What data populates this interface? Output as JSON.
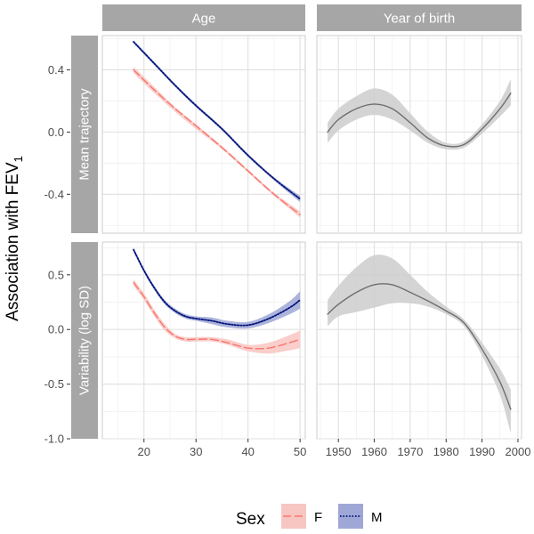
{
  "chart_data": {
    "type": "line",
    "ylabel_main": "Association with FEV",
    "ylabel_sub": "1",
    "col_labels": [
      "Age",
      "Year of birth"
    ],
    "row_labels": [
      "Mean trajectory",
      "Variability (log SD)"
    ],
    "axes": {
      "age_x": {
        "range": [
          12,
          51
        ],
        "ticks": [
          20,
          30,
          40,
          50
        ],
        "labels": [
          "20",
          "30",
          "40",
          "50"
        ]
      },
      "year_x": {
        "range": [
          1944,
          2001
        ],
        "ticks": [
          1950,
          1960,
          1970,
          1980,
          1990,
          2000
        ],
        "labels": [
          "1950",
          "1960",
          "1970",
          "1980",
          "1990",
          "2000"
        ]
      },
      "mean_y": {
        "range": [
          -0.65,
          0.62
        ],
        "ticks": [
          0.4,
          0.0,
          -0.4
        ],
        "labels": [
          "0.4",
          "0.0",
          "-0.4"
        ]
      },
      "var_y": {
        "range": [
          -1.0,
          0.8
        ],
        "ticks": [
          0.5,
          0.0,
          -0.5,
          -1.0
        ],
        "labels": [
          "0.5",
          "0.0",
          "-0.5",
          "-1.0"
        ]
      }
    },
    "legend": {
      "title": "Sex",
      "placement": "bottom",
      "entries": [
        {
          "key": "F",
          "label": "F",
          "color": "#f8766d",
          "fill": "#f8c6c2",
          "dash": "dashed"
        },
        {
          "key": "M",
          "label": "M",
          "color": "#00137a",
          "fill": "#9fa7d6",
          "dash": "dotted"
        }
      ]
    },
    "panels": [
      {
        "id": "age-mean",
        "x_axis": "age_x",
        "y_axis": "mean_y",
        "series": [
          {
            "name": "F",
            "x": [
              18,
              22,
              26,
              30,
              35,
              40,
              45,
              50
            ],
            "y": [
              0.4,
              0.27,
              0.15,
              0.04,
              -0.1,
              -0.25,
              -0.4,
              -0.53
            ],
            "lo": [
              0.38,
              0.25,
              0.13,
              0.02,
              -0.11,
              -0.26,
              -0.41,
              -0.55
            ],
            "hi": [
              0.42,
              0.29,
              0.16,
              0.05,
              -0.09,
              -0.24,
              -0.39,
              -0.51
            ]
          },
          {
            "name": "M",
            "x": [
              18,
              22,
              26,
              30,
              35,
              40,
              45,
              50
            ],
            "y": [
              0.58,
              0.44,
              0.3,
              0.17,
              0.02,
              -0.15,
              -0.3,
              -0.43
            ],
            "lo": [
              0.57,
              0.43,
              0.29,
              0.16,
              0.01,
              -0.16,
              -0.31,
              -0.45
            ],
            "hi": [
              0.59,
              0.45,
              0.31,
              0.18,
              0.03,
              -0.14,
              -0.29,
              -0.41
            ]
          }
        ]
      },
      {
        "id": "year-mean",
        "x_axis": "year_x",
        "y_axis": "mean_y",
        "series": [
          {
            "name": "",
            "x": [
              1947,
              1950,
              1955,
              1960,
              1965,
              1970,
              1975,
              1980,
              1985,
              1990,
              1995,
              1998
            ],
            "y": [
              0.0,
              0.08,
              0.15,
              0.18,
              0.15,
              0.06,
              -0.04,
              -0.09,
              -0.08,
              0.02,
              0.15,
              0.25
            ],
            "lo": [
              -0.07,
              0.01,
              0.08,
              0.11,
              0.08,
              0.01,
              -0.07,
              -0.11,
              -0.1,
              -0.01,
              0.1,
              0.17
            ],
            "hi": [
              0.06,
              0.15,
              0.23,
              0.28,
              0.24,
              0.12,
              0.0,
              -0.07,
              -0.06,
              0.05,
              0.2,
              0.34
            ]
          }
        ]
      },
      {
        "id": "age-var",
        "x_axis": "age_x",
        "y_axis": "var_y",
        "series": [
          {
            "name": "F",
            "x": [
              18,
              20,
              22,
              24,
              26,
              28,
              30,
              33,
              36,
              40,
              44,
              48,
              50
            ],
            "y": [
              0.43,
              0.3,
              0.15,
              0.02,
              -0.06,
              -0.09,
              -0.09,
              -0.09,
              -0.12,
              -0.17,
              -0.17,
              -0.12,
              -0.09
            ],
            "lo": [
              0.4,
              0.27,
              0.12,
              -0.01,
              -0.08,
              -0.11,
              -0.11,
              -0.11,
              -0.14,
              -0.2,
              -0.22,
              -0.19,
              -0.17
            ],
            "hi": [
              0.46,
              0.33,
              0.18,
              0.05,
              -0.04,
              -0.07,
              -0.07,
              -0.07,
              -0.09,
              -0.14,
              -0.12,
              -0.05,
              -0.01
            ]
          },
          {
            "name": "M",
            "x": [
              18,
              20,
              22,
              24,
              26,
              28,
              30,
              33,
              36,
              40,
              44,
              48,
              50
            ],
            "y": [
              0.73,
              0.54,
              0.38,
              0.25,
              0.17,
              0.12,
              0.1,
              0.08,
              0.05,
              0.04,
              0.1,
              0.2,
              0.27
            ],
            "lo": [
              0.71,
              0.52,
              0.36,
              0.23,
              0.15,
              0.1,
              0.08,
              0.05,
              0.02,
              0.01,
              0.06,
              0.14,
              0.19
            ],
            "hi": [
              0.75,
              0.56,
              0.4,
              0.27,
              0.19,
              0.14,
              0.12,
              0.11,
              0.08,
              0.07,
              0.14,
              0.26,
              0.35
            ]
          }
        ]
      },
      {
        "id": "year-var",
        "x_axis": "year_x",
        "y_axis": "var_y",
        "series": [
          {
            "name": "",
            "x": [
              1947,
              1950,
              1955,
              1960,
              1965,
              1970,
              1975,
              1980,
              1985,
              1990,
              1995,
              1998
            ],
            "y": [
              0.14,
              0.23,
              0.34,
              0.41,
              0.41,
              0.34,
              0.26,
              0.17,
              0.06,
              -0.18,
              -0.48,
              -0.73
            ],
            "lo": [
              0.03,
              0.12,
              0.16,
              0.2,
              0.24,
              0.24,
              0.21,
              0.14,
              0.03,
              -0.24,
              -0.6,
              -0.95
            ],
            "hi": [
              0.27,
              0.4,
              0.57,
              0.68,
              0.65,
              0.5,
              0.34,
              0.21,
              0.09,
              -0.12,
              -0.36,
              -0.55
            ]
          }
        ]
      }
    ]
  }
}
